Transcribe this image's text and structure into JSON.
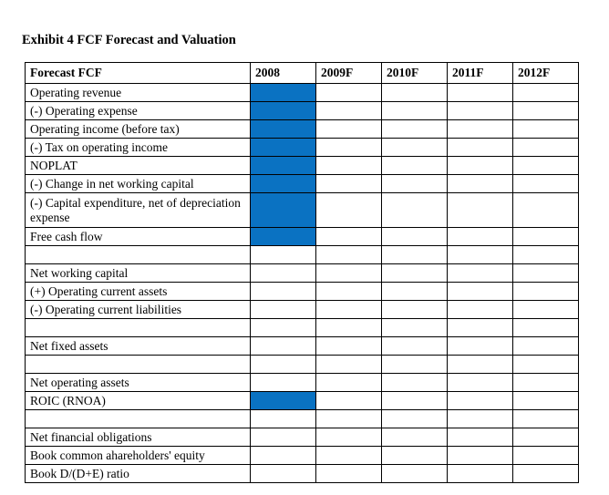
{
  "page": {
    "title": "Exhibit 4 FCF Forecast and Valuation"
  },
  "colors": {
    "highlight_blue": "#0a72c2",
    "border": "#000000",
    "text": "#000000",
    "background": "#ffffff"
  },
  "table": {
    "columns": [
      {
        "key": "label",
        "label": "Forecast FCF"
      },
      {
        "key": "y2008",
        "label": "2008"
      },
      {
        "key": "y2009",
        "label": "2009F"
      },
      {
        "key": "y2010",
        "label": "2010F"
      },
      {
        "key": "y2011",
        "label": "2011F"
      },
      {
        "key": "y2012",
        "label": "2012F"
      }
    ],
    "rows": [
      {
        "label": "Operating revenue",
        "bold": false,
        "highlight_2008": true,
        "tall": false,
        "spacer": false,
        "cells": [
          "",
          "",
          "",
          "",
          ""
        ]
      },
      {
        "label": "(-) Operating expense",
        "bold": false,
        "highlight_2008": true,
        "tall": false,
        "spacer": false,
        "cells": [
          "",
          "",
          "",
          "",
          ""
        ]
      },
      {
        "label": "Operating income (before tax)",
        "bold": true,
        "highlight_2008": true,
        "tall": false,
        "spacer": false,
        "cells": [
          "",
          "",
          "",
          "",
          ""
        ]
      },
      {
        "label": "(-) Tax on operating income",
        "bold": false,
        "highlight_2008": true,
        "tall": false,
        "spacer": false,
        "cells": [
          "",
          "",
          "",
          "",
          ""
        ]
      },
      {
        "label": "NOPLAT",
        "bold": true,
        "highlight_2008": true,
        "tall": false,
        "spacer": false,
        "cells": [
          "",
          "",
          "",
          "",
          ""
        ]
      },
      {
        "label": "(-) Change in net working capital",
        "bold": false,
        "highlight_2008": true,
        "tall": false,
        "spacer": false,
        "cells": [
          "",
          "",
          "",
          "",
          ""
        ]
      },
      {
        "label": "(-) Capital expenditure, net of depreciation expense",
        "bold": false,
        "highlight_2008": true,
        "tall": true,
        "spacer": false,
        "cells": [
          "",
          "",
          "",
          "",
          ""
        ]
      },
      {
        "label": "Free cash flow",
        "bold": true,
        "highlight_2008": true,
        "tall": false,
        "spacer": false,
        "cells": [
          "",
          "",
          "",
          "",
          ""
        ]
      },
      {
        "label": "",
        "bold": false,
        "highlight_2008": false,
        "tall": false,
        "spacer": true,
        "cells": [
          "",
          "",
          "",
          "",
          ""
        ]
      },
      {
        "label": "Net working capital",
        "bold": true,
        "highlight_2008": false,
        "tall": false,
        "spacer": false,
        "cells": [
          "",
          "",
          "",
          "",
          ""
        ]
      },
      {
        "label": "(+) Operating current assets",
        "bold": false,
        "highlight_2008": false,
        "tall": false,
        "spacer": false,
        "cells": [
          "",
          "",
          "",
          "",
          ""
        ]
      },
      {
        "label": "(-) Operating current liabilities",
        "bold": false,
        "highlight_2008": false,
        "tall": false,
        "spacer": false,
        "cells": [
          "",
          "",
          "",
          "",
          ""
        ]
      },
      {
        "label": "",
        "bold": false,
        "highlight_2008": false,
        "tall": false,
        "spacer": true,
        "cells": [
          "",
          "",
          "",
          "",
          ""
        ]
      },
      {
        "label": "Net fixed assets",
        "bold": true,
        "highlight_2008": false,
        "tall": false,
        "spacer": false,
        "cells": [
          "",
          "",
          "",
          "",
          ""
        ]
      },
      {
        "label": "",
        "bold": false,
        "highlight_2008": false,
        "tall": false,
        "spacer": true,
        "cells": [
          "",
          "",
          "",
          "",
          ""
        ]
      },
      {
        "label": "Net operating assets",
        "bold": true,
        "highlight_2008": false,
        "tall": false,
        "spacer": false,
        "cells": [
          "",
          "",
          "",
          "",
          ""
        ]
      },
      {
        "label": "ROIC (RNOA)",
        "bold": false,
        "highlight_2008": true,
        "tall": false,
        "spacer": false,
        "cells": [
          "",
          "",
          "",
          "",
          ""
        ]
      },
      {
        "label": "",
        "bold": false,
        "highlight_2008": false,
        "tall": false,
        "spacer": true,
        "cells": [
          "",
          "",
          "",
          "",
          ""
        ]
      },
      {
        "label": "Net financial obligations",
        "bold": false,
        "highlight_2008": false,
        "tall": false,
        "spacer": false,
        "cells": [
          "",
          "",
          "",
          "",
          ""
        ]
      },
      {
        "label": "Book common ahareholders' equity",
        "bold": false,
        "highlight_2008": false,
        "tall": false,
        "spacer": false,
        "cells": [
          "",
          "",
          "",
          "",
          ""
        ]
      },
      {
        "label": "Book D/(D+E) ratio",
        "bold": true,
        "highlight_2008": false,
        "tall": false,
        "spacer": false,
        "cells": [
          "",
          "",
          "",
          "",
          ""
        ]
      }
    ]
  }
}
